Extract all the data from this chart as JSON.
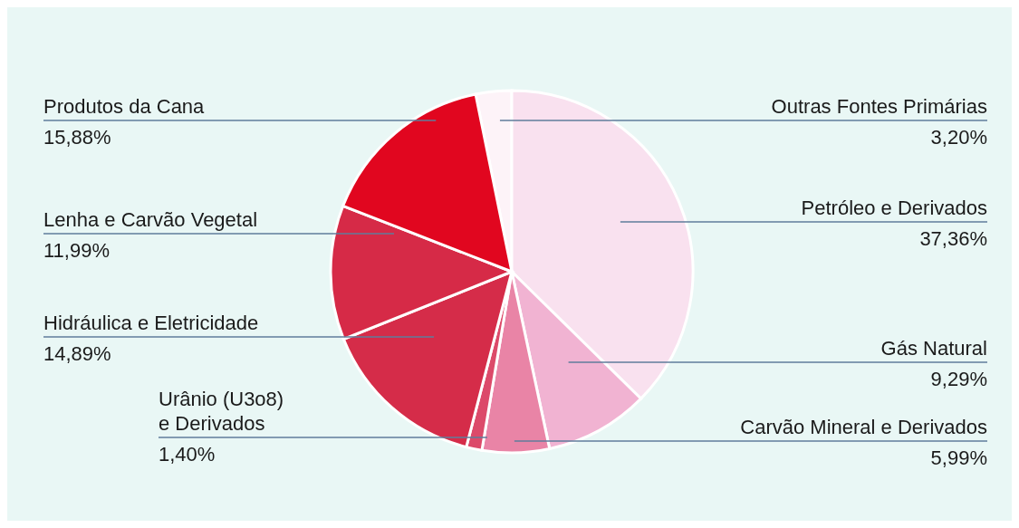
{
  "chart_data": {
    "type": "pie",
    "categories": [
      "Outras Fontes Primárias",
      "Petróleo e Derivados",
      "Gás Natural",
      "Carvão Mineral e Derivados",
      "Urânio (U3o8) e Derivados",
      "Hidráulica e Eletricidade",
      "Lenha e Carvão Vegetal",
      "Produtos da Cana"
    ],
    "values": [
      3.2,
      37.36,
      9.29,
      5.99,
      1.4,
      14.89,
      11.99,
      15.88
    ],
    "value_labels": [
      "3,20%",
      "37,36%",
      "9,29%",
      "5,99%",
      "1,40%",
      "14,89%",
      "11,99%",
      "15,88%"
    ],
    "colors": [
      "#fdf3f8",
      "#f9e1ef",
      "#f1b3d2",
      "#e984a6",
      "#dc4a6a",
      "#d52c49",
      "#d62a47",
      "#e1061f"
    ]
  }
}
